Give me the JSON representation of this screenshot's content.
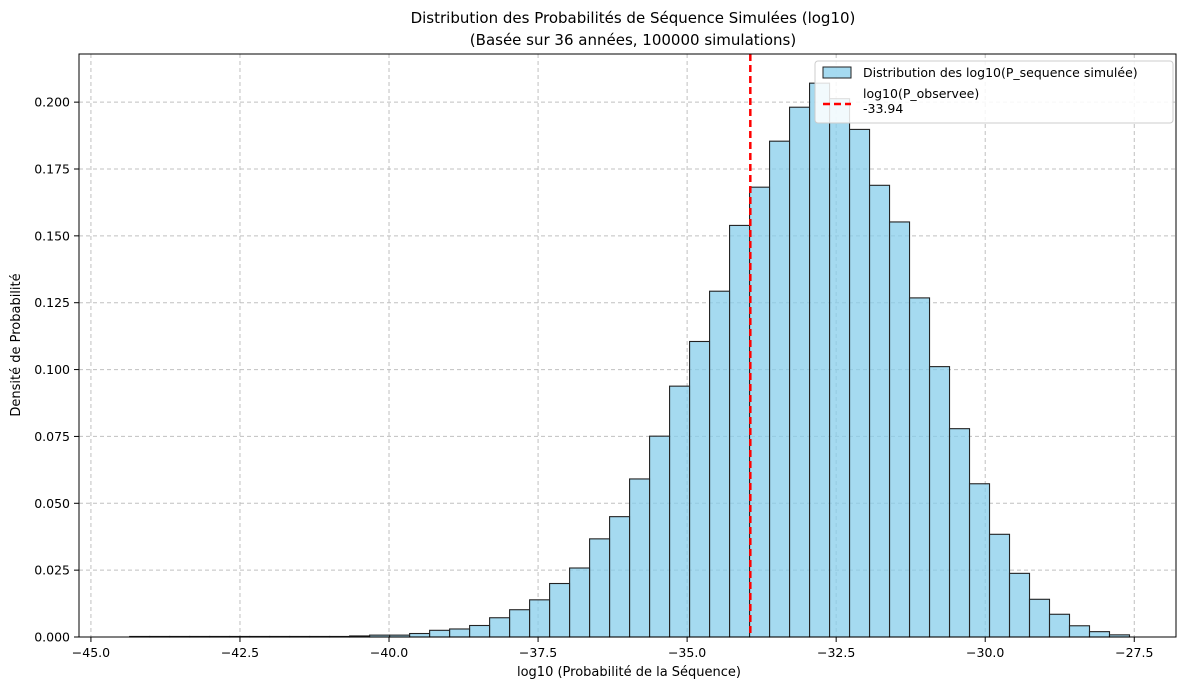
{
  "chart_data": {
    "type": "bar",
    "title": "Distribution des Probabilités de Séquence Simulées (log10)",
    "subtitle": "(Basée sur 36 années, 100000 simulations)",
    "xlabel": "log10 (Probabilité de la Séquence)",
    "ylabel": "Densité de Probabilité",
    "xlim": [
      -45.2,
      -26.8
    ],
    "ylim": [
      0,
      0.218
    ],
    "xticks": [
      -45.0,
      -42.5,
      -40.0,
      -37.5,
      -35.0,
      -32.5,
      -30.0,
      -27.5
    ],
    "xtick_labels": [
      "−45.0",
      "−42.5",
      "−40.0",
      "−37.5",
      "−35.0",
      "−32.5",
      "−30.0",
      "−27.5"
    ],
    "yticks": [
      0,
      0.025,
      0.05,
      0.075,
      0.1,
      0.125,
      0.15,
      0.175,
      0.2
    ],
    "ytick_labels": [
      "0.000",
      "0.025",
      "0.050",
      "0.075",
      "0.100",
      "0.125",
      "0.150",
      "0.175",
      "0.200"
    ],
    "grid": true,
    "legend_position": "top-right",
    "bar_color": "#87ceeb",
    "bar_edge_color": "#222222",
    "bin_start": -44.35,
    "bin_width": 0.3354,
    "values": [
      0.0002,
      0.0002,
      0.0002,
      0.0002,
      0.0002,
      0.0002,
      0.0002,
      0.0002,
      0.0002,
      0.0002,
      0.0002,
      0.0004,
      0.0007,
      0.0007,
      0.0013,
      0.0025,
      0.003,
      0.0043,
      0.0072,
      0.0102,
      0.0139,
      0.02,
      0.0258,
      0.0367,
      0.045,
      0.0591,
      0.0751,
      0.0938,
      0.1105,
      0.1293,
      0.1539,
      0.1682,
      0.1854,
      0.1981,
      0.2071,
      0.2013,
      0.1898,
      0.1689,
      0.1552,
      0.1268,
      0.1011,
      0.0779,
      0.0573,
      0.0384,
      0.0238,
      0.0141,
      0.0085,
      0.0042,
      0.002,
      0.0008
    ],
    "series": [
      {
        "name": "Distribution des log10(P_sequence simulée)",
        "kind": "histogram"
      },
      {
        "name": "log10(P_observee)",
        "annotation": "-33.94",
        "kind": "vline",
        "x": -33.94,
        "color": "#ff0000"
      }
    ]
  }
}
